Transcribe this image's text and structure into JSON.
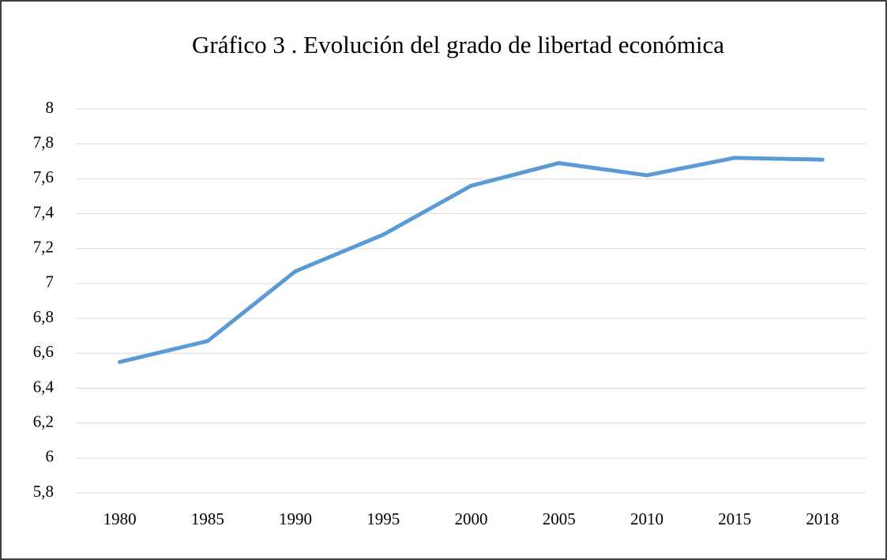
{
  "chart_data": {
    "type": "line",
    "title": "Gráfico 3 . Evolución del grado de libertad económica",
    "categories": [
      "1980",
      "1985",
      "1990",
      "1995",
      "2000",
      "2005",
      "2010",
      "2015",
      "2018"
    ],
    "series": [
      {
        "color": "#5b9bd5",
        "values": [
          6.55,
          6.67,
          7.07,
          7.28,
          7.56,
          7.69,
          7.62,
          7.72,
          7.71
        ]
      }
    ],
    "ylim": [
      5.8,
      8
    ],
    "yticks": [
      {
        "value": 5.8,
        "label": "5,8"
      },
      6,
      {
        "value": 6.2,
        "label": "6,2"
      },
      {
        "value": 6.4,
        "label": "6,4"
      },
      {
        "value": 6.6,
        "label": "6,6"
      },
      {
        "value": 6.8,
        "label": "6,8"
      },
      7,
      {
        "value": 7.2,
        "label": "7,2"
      },
      {
        "value": 7.4,
        "label": "7,4"
      },
      {
        "value": 7.6,
        "label": "7,6"
      },
      {
        "value": 7.8,
        "label": "7,8"
      },
      8
    ],
    "grid": true
  }
}
